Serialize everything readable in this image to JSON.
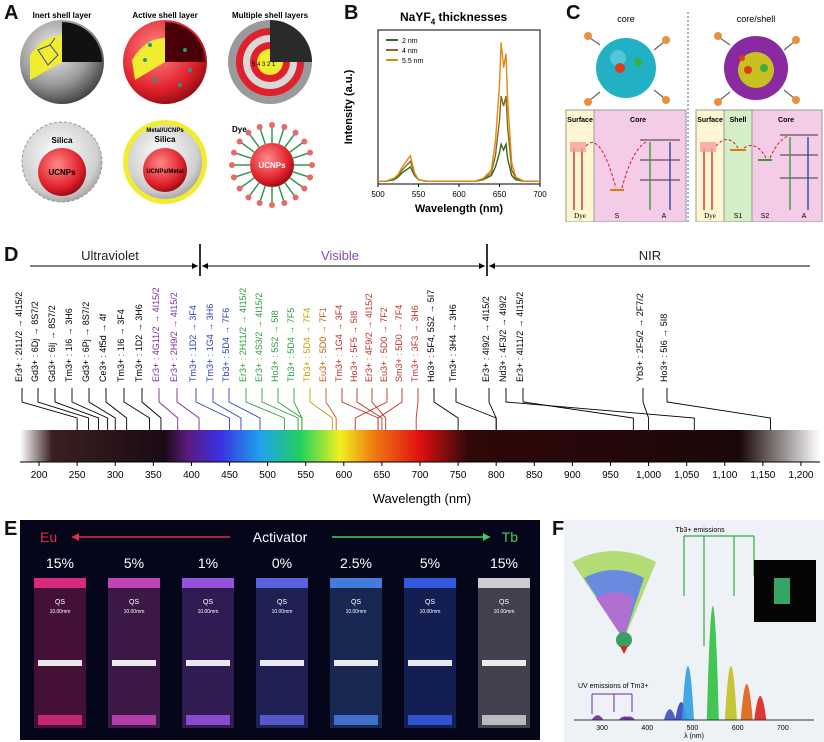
{
  "panels": {
    "A": "A",
    "B": "B",
    "C": "C",
    "D": "D",
    "E": "E",
    "F": "F"
  },
  "panelA": {
    "top_titles": [
      "Inert shell layer",
      "Active shell layer",
      "Multiple shell layers"
    ],
    "bottom_labels": {
      "silica_outer": "Silica",
      "ucnps_1": "UCNPs",
      "metal_ucnps": "Metal/UCNPs",
      "silica_mid": "Silica",
      "ucnps_metal": "UCNPs/Metal",
      "dye": "Dye",
      "ucnps_3": "UCNPs"
    },
    "ring_numbers": "5 4 3 2 1"
  },
  "panelB": {
    "title_pre": "NaYF",
    "title_sub": "4",
    "title_post": " thicknesses",
    "legend": [
      "2 nm",
      "4 nm",
      "5.5 nm"
    ],
    "colors": [
      "#2e6b1f",
      "#8a6a1a",
      "#e08a10"
    ]
  },
  "chart_data": {
    "type": "line",
    "title": "NaYF4 thicknesses",
    "xlabel": "Wavelength (nm)",
    "ylabel": "Intensity (a.u.)",
    "xlim": [
      500,
      700
    ],
    "xticks": [
      500,
      550,
      600,
      650,
      700
    ],
    "series": [
      {
        "name": "2 nm",
        "color": "#2e6b1f",
        "x": [
          500,
          510,
          520,
          525,
          530,
          535,
          540,
          545,
          550,
          560,
          580,
          600,
          620,
          630,
          640,
          645,
          650,
          652,
          655,
          658,
          660,
          665,
          670,
          680,
          700
        ],
        "y": [
          0.02,
          0.02,
          0.03,
          0.05,
          0.08,
          0.1,
          0.12,
          0.06,
          0.03,
          0.02,
          0.02,
          0.02,
          0.02,
          0.03,
          0.06,
          0.12,
          0.22,
          0.28,
          0.24,
          0.28,
          0.18,
          0.06,
          0.03,
          0.02,
          0.02
        ]
      },
      {
        "name": "4 nm",
        "color": "#8a6a1a",
        "x": [
          500,
          510,
          520,
          525,
          530,
          535,
          540,
          545,
          550,
          560,
          580,
          600,
          620,
          630,
          640,
          645,
          650,
          652,
          655,
          658,
          660,
          665,
          670,
          680,
          700
        ],
        "y": [
          0.02,
          0.02,
          0.04,
          0.06,
          0.1,
          0.13,
          0.16,
          0.07,
          0.03,
          0.02,
          0.02,
          0.02,
          0.02,
          0.03,
          0.08,
          0.2,
          0.45,
          0.62,
          0.55,
          0.62,
          0.4,
          0.1,
          0.04,
          0.02,
          0.02
        ]
      },
      {
        "name": "5.5 nm",
        "color": "#e08a10",
        "x": [
          500,
          510,
          520,
          525,
          530,
          535,
          540,
          545,
          550,
          560,
          580,
          600,
          620,
          630,
          640,
          645,
          650,
          652,
          655,
          658,
          660,
          665,
          670,
          680,
          700
        ],
        "y": [
          0.02,
          0.02,
          0.04,
          0.07,
          0.12,
          0.16,
          0.2,
          0.08,
          0.03,
          0.02,
          0.02,
          0.02,
          0.02,
          0.04,
          0.1,
          0.3,
          0.7,
          1.0,
          0.82,
          0.92,
          0.6,
          0.15,
          0.05,
          0.02,
          0.02
        ]
      }
    ]
  },
  "panelC": {
    "core": "core",
    "coreshell": "core/shell",
    "left": {
      "surface": "Surface",
      "core": "Core",
      "dye": "Dye",
      "s": "S",
      "a": "A"
    },
    "right": {
      "surface": "Surface",
      "shell": "Shell",
      "core": "Core",
      "dye": "Dye",
      "s1": "S1",
      "s2": "S2",
      "a": "A"
    }
  },
  "panelD": {
    "uv": "Ultraviolet",
    "vis": "Visible",
    "nir": "NIR",
    "xlabel": "Wavelength (nm)",
    "ticks": [
      "200",
      "250",
      "300",
      "350",
      "400",
      "450",
      "500",
      "550",
      "600",
      "650",
      "700",
      "750",
      "800",
      "850",
      "900",
      "950",
      "1,000",
      "1,050",
      "1,100",
      "1,150",
      "1,200"
    ],
    "transitions": [
      "Er3+ : 2I11/2 → 4I15/2",
      "Gd3+ : 6Dj → 8S7/2",
      "Gd3+ : 6Ij → 8S7/2",
      "Tm3+ : 1I6 → 3H6",
      "Gd3+ : 6Pj → 8S7/2",
      "Ce3+ : 4f5d → 4f",
      "Tm3+ : 1I6 → 3F4",
      "Tm3+ : 1D2 → 3H6",
      "Er3+ : 4G11/2 → 4I15/2",
      "Er3+ : 2H9/2 → 4I15/2",
      "Tm3+ : 1D2 → 3F4",
      "Tm3+ : 1G4 → 3H6",
      "Tb3+ : 5D4 → 7F6",
      "Er3+ : 2H11/2 → 4I15/2",
      "Er3+ : 4S3/2 → 4I15/2",
      "Ho3+ : 5S2 → 5I8",
      "Tb3+ : 5D4 → 7F5",
      "Tb3+ : 5D4 → 7F4",
      "Eu3+ : 5D0 → 7F1",
      "Tm3+ : 1G4 → 3F4",
      "Ho3+ : 5F5 → 5I8",
      "Er3+ : 4F9/2 → 4I15/2",
      "Eu3+ : 5D0 → 7F2",
      "Sm3+ : 5D0 → 7F4",
      "Tm3+ : 3F3 → 3H6",
      "Ho3+ : 5F4, 5S2 → 5I7",
      "Tm3+ : 3H4 → 3H6",
      "Er3+ : 4I9/2 → 4I15/2",
      "Nd3+ : 4F3/2 → 4I9/2",
      "Er3+ : 4I11/2 → 4I15/2",
      "Yb3+ : 2F5/2 → 2F7/2",
      "Ho3+ : 5I6 → 5I8"
    ]
  },
  "panelE": {
    "eu": "Eu",
    "activator": "Activator",
    "tb": "Tb",
    "percents": [
      "15%",
      "5%",
      "1%",
      "0%",
      "2.5%",
      "5%",
      "15%"
    ],
    "cuvette_label": "QS",
    "cuvette_sub": "10.00mm"
  },
  "panelF": {
    "tb_emissions": "Tb3+ emissions",
    "uv_emissions": "UV emissions of Tm3+",
    "xlabel": "λ (nm)",
    "ticks": [
      "300",
      "400",
      "500",
      "600",
      "700"
    ]
  }
}
